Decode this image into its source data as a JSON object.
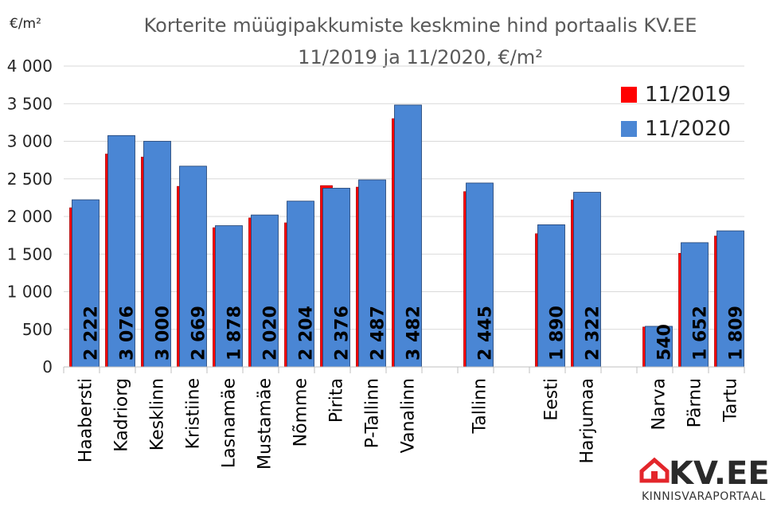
{
  "chart_data": {
    "type": "bar",
    "title": "Korterite müügipakkumiste keskmine hind portaalis KV.EE",
    "subtitle": "11/2019 ja 11/2020, €/m²",
    "ylabel": "€/m²",
    "xlabel": "",
    "ylim": [
      0,
      4000
    ],
    "yticks": [
      0,
      500,
      1000,
      1500,
      2000,
      2500,
      3000,
      3500,
      4000
    ],
    "ytick_labels": [
      "0",
      "500",
      "1 000",
      "1 500",
      "2 000",
      "2 500",
      "3 000",
      "3 500",
      "4 000"
    ],
    "grid": true,
    "legend_position": "top-right",
    "categories": [
      "Haabersti",
      "Kadriorg",
      "Kesklinn",
      "Kristiine",
      "Lasnamäe",
      "Mustamäe",
      "Nõmme",
      "Pirita",
      "P-Tallinn",
      "Vanalinn",
      "",
      "Tallinn",
      "",
      "Eesti",
      "Harjumaa",
      "",
      "Narva",
      "Pärnu",
      "Tartu"
    ],
    "series": [
      {
        "name": "11/2019",
        "color": "#ff0000",
        "values": [
          2115,
          2830,
          2790,
          2400,
          1850,
          1980,
          1915,
          2410,
          2390,
          3300,
          null,
          2330,
          null,
          1770,
          2220,
          null,
          530,
          1510,
          1740
        ]
      },
      {
        "name": "11/2020",
        "color": "#4a86d4",
        "values": [
          2222,
          3076,
          3000,
          2669,
          1878,
          2020,
          2204,
          2376,
          2487,
          3482,
          null,
          2445,
          null,
          1890,
          2322,
          null,
          540,
          1652,
          1809
        ]
      }
    ],
    "data_labels": [
      "2 222",
      "3 076",
      "3 000",
      "2 669",
      "1 878",
      "2 020",
      "2 204",
      "2 376",
      "2 487",
      "3 482",
      "",
      "2 445",
      "",
      "1 890",
      "2 322",
      "",
      "540",
      "1 652",
      "1 809"
    ]
  },
  "logo": {
    "text": "KV.EE",
    "subtitle": "KINNISVARAPORTAAL",
    "house_color": "#e3262b"
  }
}
